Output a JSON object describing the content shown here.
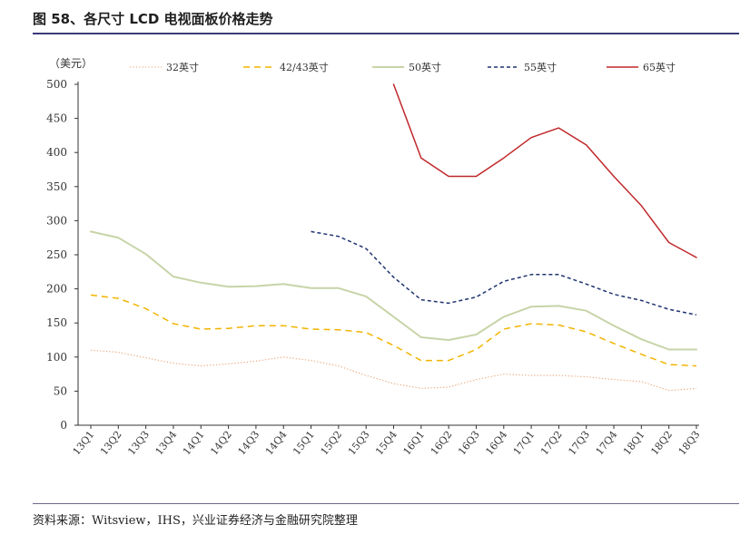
{
  "figure": {
    "title": "图 58、各尺寸 LCD 电视面板价格走势",
    "source": "资料来源：Witsview，IHS，兴业证券经济与金融研究院整理"
  },
  "chart_data": {
    "type": "line",
    "title": "",
    "xlabel": "",
    "ylabel": "（美元）",
    "ylim": [
      0,
      500
    ],
    "yticks": [
      0,
      50,
      100,
      150,
      200,
      250,
      300,
      350,
      400,
      450,
      500
    ],
    "grid": false,
    "legend_position": "top",
    "categories": [
      "13Q1",
      "13Q2",
      "13Q3",
      "13Q4",
      "14Q1",
      "14Q2",
      "14Q3",
      "14Q4",
      "15Q1",
      "15Q2",
      "15Q3",
      "15Q4",
      "16Q1",
      "16Q2",
      "16Q3",
      "16Q4",
      "17Q1",
      "17Q2",
      "17Q3",
      "17Q4",
      "18Q1",
      "18Q2",
      "18Q3"
    ],
    "series": [
      {
        "name": "32英寸",
        "color": "#e8a070",
        "style": "dotted",
        "values": [
          110,
          107,
          99,
          91,
          87,
          90,
          94,
          100,
          95,
          87,
          73,
          61,
          54,
          56,
          67,
          75,
          73,
          73,
          71,
          67,
          64,
          51,
          54
        ]
      },
      {
        "name": "42/43英寸",
        "color": "#f2b400",
        "style": "dashed",
        "values": [
          191,
          186,
          171,
          149,
          141,
          142,
          146,
          146,
          141,
          140,
          136,
          117,
          95,
          95,
          111,
          141,
          149,
          147,
          137,
          120,
          104,
          89,
          87
        ]
      },
      {
        "name": "50英寸",
        "color": "#c7d4a8",
        "style": "solid",
        "values": [
          284,
          275,
          251,
          218,
          209,
          203,
          204,
          207,
          201,
          201,
          189,
          159,
          129,
          125,
          133,
          159,
          174,
          175,
          168,
          146,
          126,
          111,
          111
        ]
      },
      {
        "name": "55英寸",
        "color": "#1f3470",
        "style": "dashed-dense",
        "values": [
          null,
          null,
          null,
          null,
          null,
          null,
          null,
          null,
          284,
          277,
          259,
          217,
          184,
          179,
          188,
          211,
          221,
          221,
          207,
          192,
          183,
          170,
          162
        ]
      },
      {
        "name": "65英寸",
        "color": "#c0282a",
        "style": "solid",
        "values": [
          null,
          null,
          null,
          null,
          null,
          null,
          null,
          null,
          null,
          null,
          null,
          500,
          392,
          365,
          365,
          392,
          422,
          436,
          411,
          365,
          322,
          268,
          246
        ]
      }
    ]
  }
}
